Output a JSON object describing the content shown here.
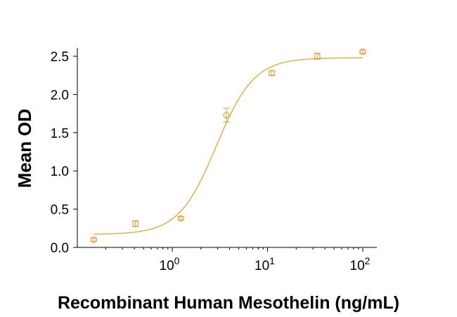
{
  "chart_data": {
    "type": "scatter",
    "xlabel": "Recombinant Human Mesothelin (ng/mL)",
    "ylabel": "Mean OD",
    "x_scale": "log",
    "xlim": [
      0.13,
      130
    ],
    "ylim": [
      0,
      2.6
    ],
    "x_ticks": [
      {
        "value": 1,
        "base": "10",
        "exp": "0"
      },
      {
        "value": 10,
        "base": "10",
        "exp": "1"
      },
      {
        "value": 100,
        "base": "10",
        "exp": "2"
      }
    ],
    "y_ticks": [
      "0.0",
      "0.5",
      "1.0",
      "1.5",
      "2.0",
      "2.5"
    ],
    "grid": false,
    "color": "#d9a441",
    "series": [
      {
        "points": [
          {
            "x": 0.15,
            "y": 0.1,
            "err": 0.02
          },
          {
            "x": 0.41,
            "y": 0.31,
            "err": 0.04
          },
          {
            "x": 1.23,
            "y": 0.38,
            "err": 0.02
          },
          {
            "x": 3.7,
            "y": 1.73,
            "err": 0.09
          },
          {
            "x": 11.1,
            "y": 2.28,
            "err": 0.03
          },
          {
            "x": 33.3,
            "y": 2.5,
            "err": 0.04
          },
          {
            "x": 100,
            "y": 2.56,
            "err": 0.02
          }
        ],
        "fit": {
          "model": "4PL",
          "bottom": 0.17,
          "top": 2.48,
          "ec50": 2.9,
          "hill": 2.2
        }
      }
    ]
  }
}
